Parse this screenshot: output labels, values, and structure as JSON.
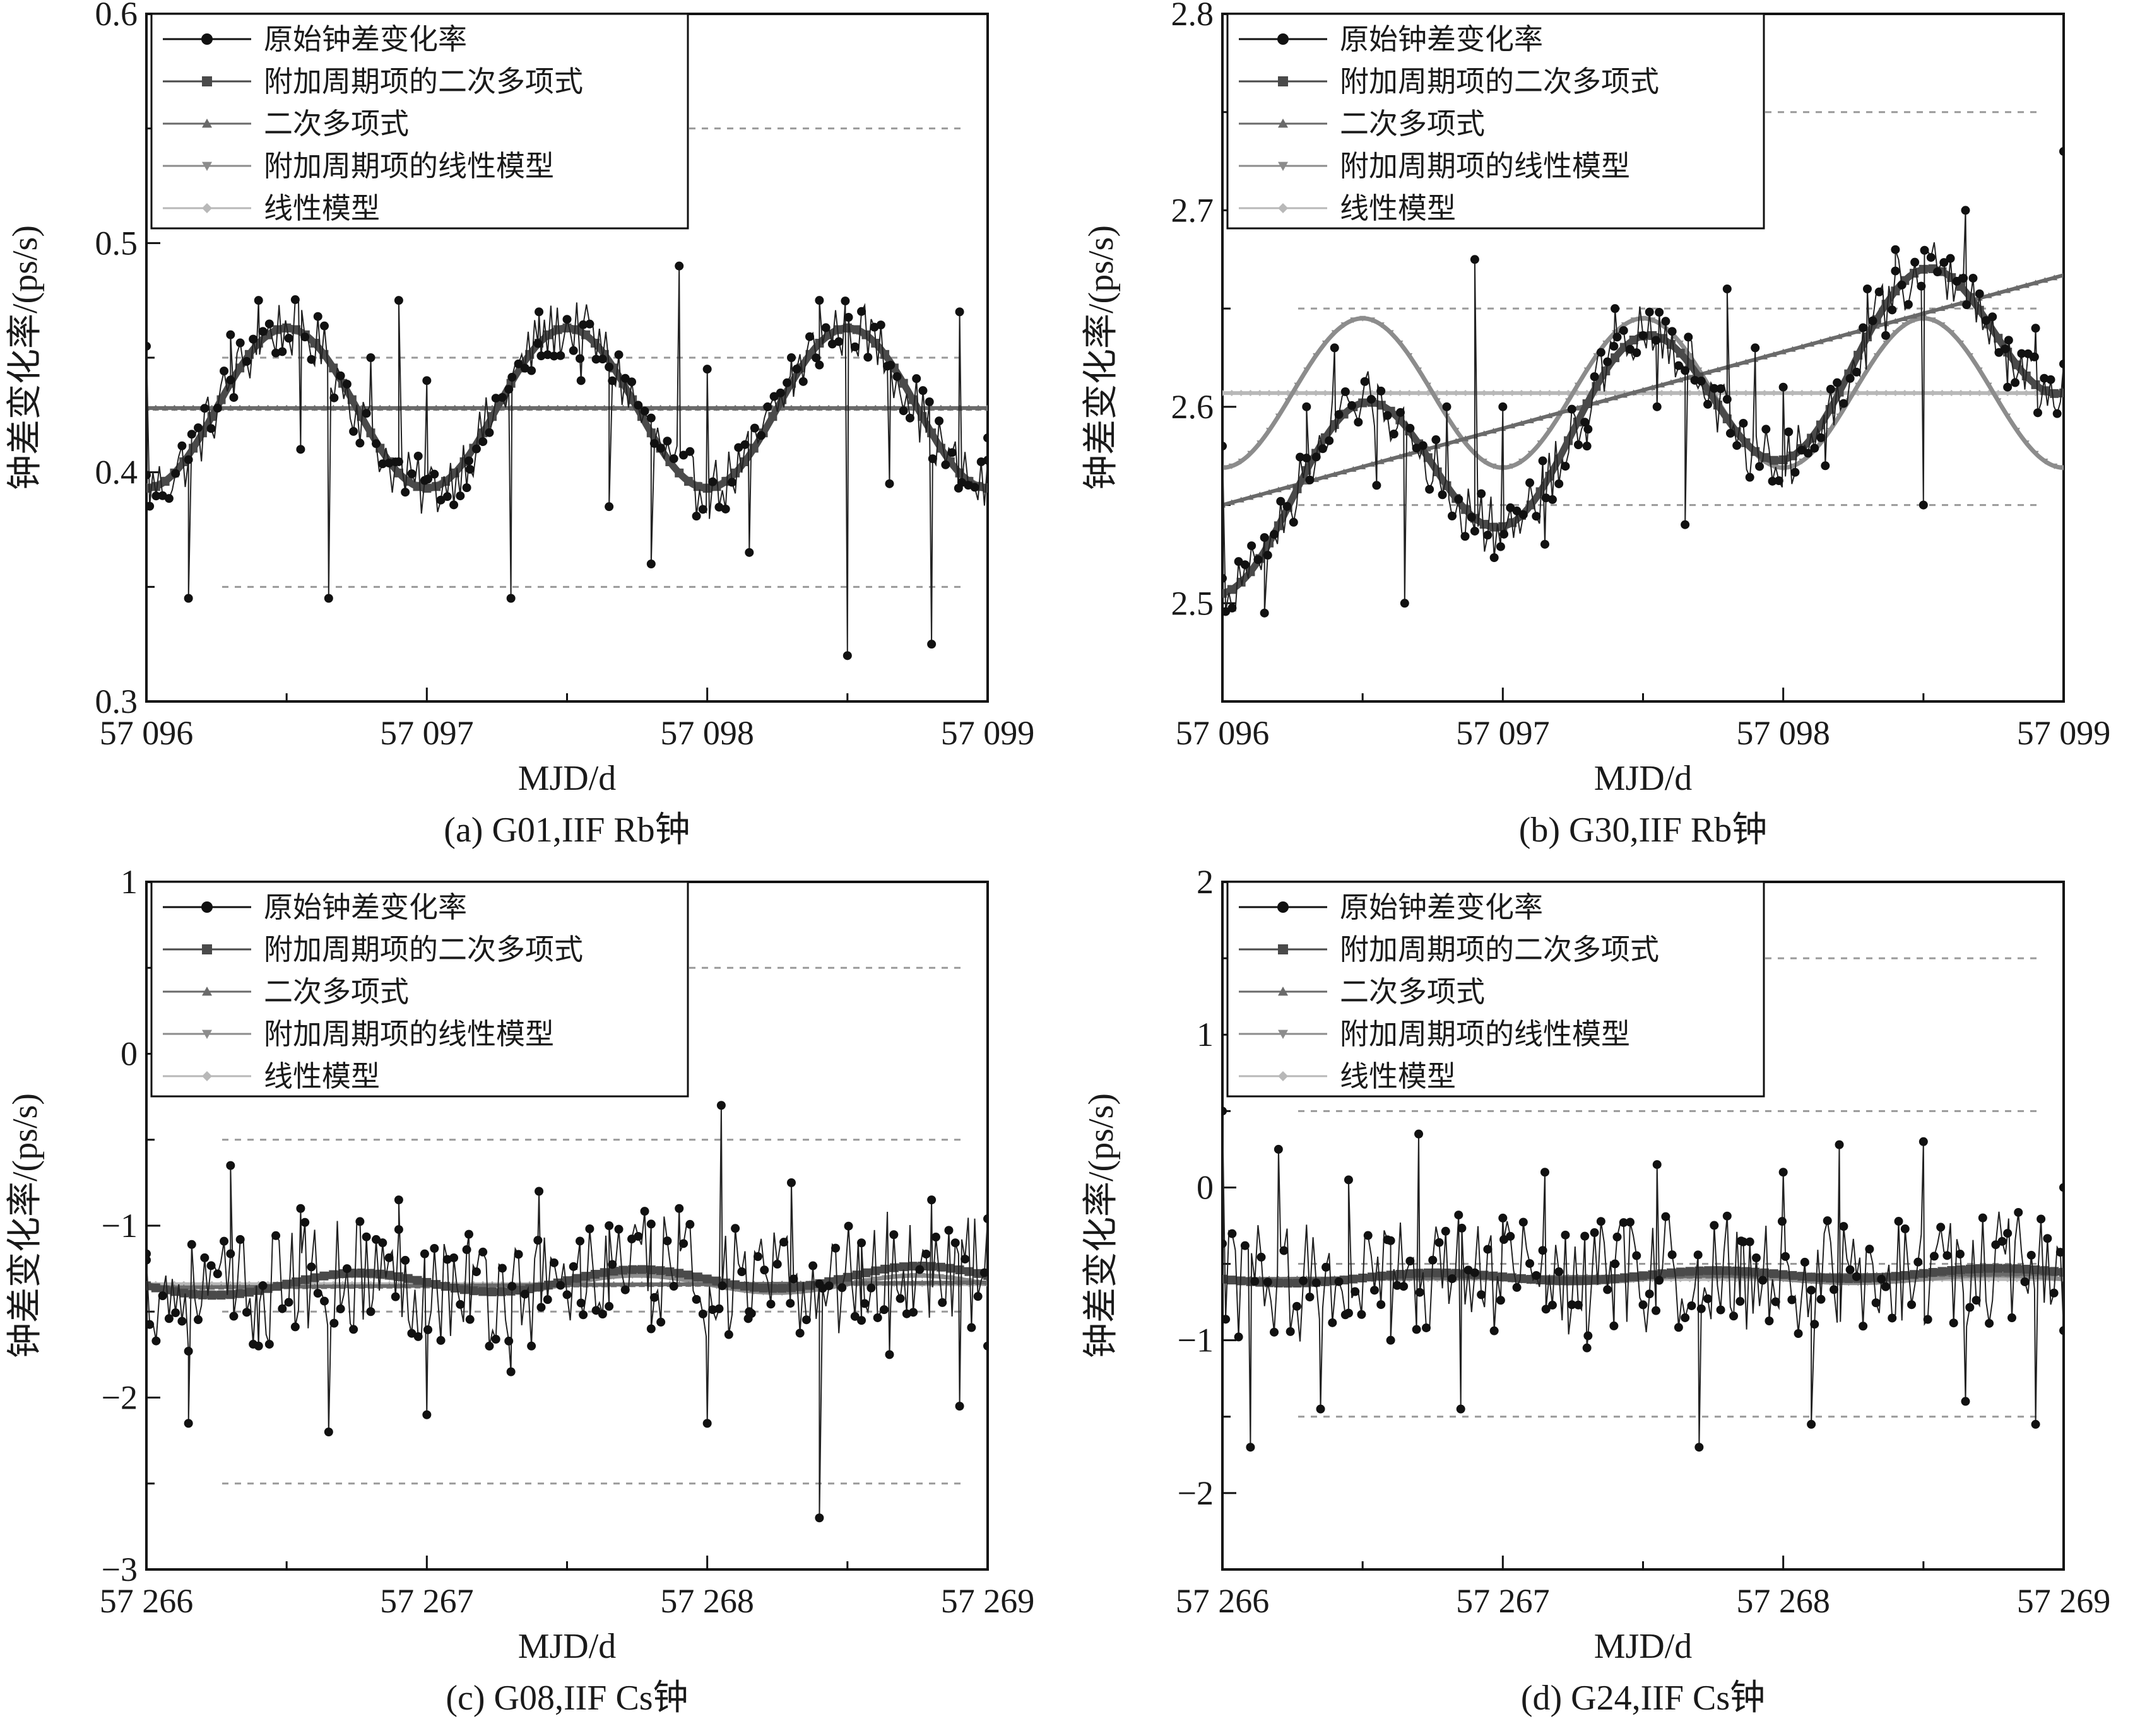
{
  "figure": {
    "series_names": [
      "原始钟差变化率",
      "附加周期项的二次多项式",
      "二次多项式",
      "附加周期项的线性模型",
      "线性模型"
    ],
    "series_colors": [
      "#111111",
      "#4a4a4a",
      "#6a6a6a",
      "#8c8c8c",
      "#b8b8b8"
    ],
    "series_markers": [
      "circle",
      "square",
      "triangle-up",
      "triangle-down",
      "diamond"
    ]
  },
  "chart_data": [
    {
      "type": "line",
      "panel": "a",
      "caption": "(a) G01,IIF Rb钟",
      "xlabel": "MJD/d",
      "ylabel": "钟差变化率/(ps/s)",
      "xlim": [
        57096,
        57099
      ],
      "ylim": [
        0.3,
        0.6
      ],
      "xticks": [
        57096,
        57097,
        57098,
        57099
      ],
      "xtick_labels": [
        "57 096",
        "57 097",
        "57 098",
        "57 099"
      ],
      "yticks": [
        0.3,
        0.4,
        0.5,
        0.6
      ],
      "ytick_labels": [
        "0.3",
        "0.4",
        "0.5",
        "0.6"
      ],
      "grid_y": [
        0.35,
        0.45,
        0.55
      ],
      "legend": "top-left",
      "series": [
        {
          "name": "原始钟差变化率",
          "x": [
            57096.0,
            57096.15,
            57096.3,
            57096.4,
            57096.55,
            57096.65,
            57096.8,
            57096.9,
            57097.0,
            57097.15,
            57097.3,
            57097.4,
            57097.55,
            57097.65,
            57097.8,
            57097.9,
            57098.0,
            57098.15,
            57098.3,
            57098.4,
            57098.5,
            57098.65,
            57098.8,
            57098.9,
            57099.0
          ],
          "values": [
            0.455,
            0.345,
            0.46,
            0.475,
            0.41,
            0.345,
            0.45,
            0.475,
            0.44,
            0.405,
            0.345,
            0.47,
            0.44,
            0.385,
            0.36,
            0.49,
            0.445,
            0.365,
            0.45,
            0.475,
            0.32,
            0.395,
            0.325,
            0.47,
            0.415
          ]
        },
        {
          "name": "附加周期项的二次多项式",
          "amp": 0.035,
          "mean": 0.428,
          "trend": 0.0,
          "freq": 1.0,
          "phase": 0.5
        },
        {
          "name": "二次多项式",
          "amp": 0.0,
          "mean": 0.428,
          "trend": 0.0,
          "freq": 1.0,
          "phase": 0.0
        },
        {
          "name": "附加周期项的线性模型",
          "amp": 0.034,
          "mean": 0.428,
          "trend": 0.0,
          "freq": 1.0,
          "phase": 0.5
        },
        {
          "name": "线性模型",
          "amp": 0.0,
          "mean": 0.428,
          "trend": 0.0,
          "freq": 1.0,
          "phase": 0.0
        }
      ]
    },
    {
      "type": "line",
      "panel": "b",
      "caption": "(b) G30,IIF Rb钟",
      "xlabel": "MJD/d",
      "ylabel": "钟差变化率/(ps/s)",
      "xlim": [
        57096,
        57099
      ],
      "ylim": [
        2.45,
        2.8
      ],
      "xticks": [
        57096,
        57097,
        57098,
        57099
      ],
      "xtick_labels": [
        "57 096",
        "57 097",
        "57 098",
        "57 099"
      ],
      "yticks": [
        2.5,
        2.6,
        2.7,
        2.8
      ],
      "ytick_labels": [
        "2.5",
        "2.6",
        "2.7",
        "2.8"
      ],
      "grid_y": [
        2.55,
        2.65,
        2.75
      ],
      "legend": "top-left",
      "series": [
        {
          "name": "原始钟差变化率",
          "x": [
            57096.0,
            57096.15,
            57096.3,
            57096.4,
            57096.55,
            57096.65,
            57096.8,
            57096.9,
            57097.0,
            57097.15,
            57097.3,
            57097.4,
            57097.55,
            57097.65,
            57097.8,
            57097.9,
            57098.0,
            57098.15,
            57098.3,
            57098.4,
            57098.5,
            57098.65,
            57098.8,
            57098.9,
            57099.0
          ],
          "values": [
            2.58,
            2.495,
            2.6,
            2.63,
            2.56,
            2.5,
            2.6,
            2.675,
            2.6,
            2.53,
            2.58,
            2.65,
            2.6,
            2.54,
            2.66,
            2.63,
            2.61,
            2.57,
            2.66,
            2.68,
            2.55,
            2.7,
            2.61,
            2.64,
            2.73
          ]
        },
        {
          "name": "附加周期项的二次多项式",
          "amp": 0.04,
          "mean": 2.545,
          "trend": 0.034,
          "freq": 1.0,
          "phase": 0.5
        },
        {
          "name": "二次多项式",
          "amp": 0.0,
          "mean": 2.55,
          "trend": 0.039,
          "freq": 1.0,
          "phase": 0.0
        },
        {
          "name": "附加周期项的线性模型",
          "amp": 0.038,
          "mean": 2.607,
          "trend": 0.0,
          "freq": 1.0,
          "phase": 0.5
        },
        {
          "name": "线性模型",
          "amp": 0.0,
          "mean": 2.607,
          "trend": 0.0,
          "freq": 1.0,
          "phase": 0.0
        }
      ]
    },
    {
      "type": "line",
      "panel": "c",
      "caption": "(c) G08,IIF Cs钟",
      "xlabel": "MJD/d",
      "ylabel": "钟差变化率/(ps/s)",
      "xlim": [
        57266,
        57269
      ],
      "ylim": [
        -3,
        1
      ],
      "xticks": [
        57266,
        57267,
        57268,
        57269
      ],
      "xtick_labels": [
        "57 266",
        "57 267",
        "57 268",
        "57 269"
      ],
      "yticks": [
        -3,
        -2,
        -1,
        0,
        1
      ],
      "ytick_labels": [
        "−3",
        "−2",
        "−1",
        "0",
        "1"
      ],
      "grid_y": [
        -2.5,
        -1.5,
        -0.5,
        0.5
      ],
      "legend": "top-left",
      "series": [
        {
          "name": "原始钟差变化率",
          "x": [
            57266.0,
            57266.15,
            57266.3,
            57266.4,
            57266.55,
            57266.65,
            57266.8,
            57266.9,
            57267.0,
            57267.15,
            57267.3,
            57267.4,
            57267.55,
            57267.65,
            57267.8,
            57267.9,
            57268.0,
            57268.05,
            57268.15,
            57268.3,
            57268.4,
            57268.55,
            57268.65,
            57268.8,
            57268.9,
            57269.0
          ],
          "values": [
            -1.2,
            -2.15,
            -0.65,
            -1.7,
            -0.9,
            -2.2,
            -1.5,
            -0.85,
            -2.1,
            -1.05,
            -1.85,
            -0.8,
            -1.45,
            -1.0,
            -1.6,
            -0.9,
            -2.15,
            -0.3,
            -1.5,
            -0.75,
            -2.7,
            -1.1,
            -1.75,
            -0.85,
            -2.05,
            -1.7
          ]
        },
        {
          "name": "附加周期项的二次多项式",
          "amp": 0.06,
          "mean": -1.35,
          "trend": 0.02,
          "freq": 1.0,
          "phase": 0.25
        },
        {
          "name": "二次多项式",
          "amp": 0.0,
          "mean": -1.36,
          "trend": 0.01,
          "freq": 1.0,
          "phase": 0.0
        },
        {
          "name": "附加周期项的线性模型",
          "amp": 0.05,
          "mean": -1.34,
          "trend": 0.0,
          "freq": 1.0,
          "phase": 0.25
        },
        {
          "name": "线性模型",
          "amp": 0.0,
          "mean": -1.34,
          "trend": 0.0,
          "freq": 1.0,
          "phase": 0.0
        }
      ]
    },
    {
      "type": "line",
      "panel": "d",
      "caption": "(d) G24,IIF Cs钟",
      "xlabel": "MJD/d",
      "ylabel": "钟差变化率/(ps/s)",
      "xlim": [
        57266,
        57269
      ],
      "ylim": [
        -2.5,
        2
      ],
      "xticks": [
        57266,
        57267,
        57268,
        57269
      ],
      "xtick_labels": [
        "57 266",
        "57 267",
        "57 268",
        "57 269"
      ],
      "yticks": [
        -2,
        -1,
        0,
        1,
        2
      ],
      "ytick_labels": [
        "−2",
        "−1",
        "0",
        "1",
        "2"
      ],
      "grid_y": [
        -1.5,
        -0.5,
        0.5,
        1.5
      ],
      "legend": "top-left",
      "series": [
        {
          "name": "原始钟差变化率",
          "x": [
            57266.0,
            57266.1,
            57266.2,
            57266.35,
            57266.45,
            57266.6,
            57266.7,
            57266.85,
            57267.0,
            57267.15,
            57267.3,
            57267.4,
            57267.55,
            57267.7,
            57267.85,
            57268.0,
            57268.1,
            57268.2,
            57268.35,
            57268.5,
            57268.65,
            57268.8,
            57268.9,
            57269.0
          ],
          "values": [
            0.5,
            -1.7,
            0.25,
            -1.45,
            0.05,
            -1.0,
            0.35,
            -1.45,
            -0.2,
            0.1,
            -1.05,
            -0.5,
            0.15,
            -1.7,
            -0.35,
            0.1,
            -1.55,
            0.28,
            -0.6,
            0.3,
            -1.4,
            -0.3,
            -1.55,
            0.0
          ]
        },
        {
          "name": "附加周期项的二次多项式",
          "amp": 0.03,
          "mean": -0.6,
          "trend": 0.015,
          "freq": 1.0,
          "phase": 0.25
        },
        {
          "name": "二次多项式",
          "amp": 0.0,
          "mean": -0.6,
          "trend": 0.012,
          "freq": 1.0,
          "phase": 0.0
        },
        {
          "name": "附加周期项的线性模型",
          "amp": 0.025,
          "mean": -0.6,
          "trend": 0.0,
          "freq": 1.0,
          "phase": 0.25
        },
        {
          "name": "线性模型",
          "amp": 0.0,
          "mean": -0.6,
          "trend": 0.0,
          "freq": 1.0,
          "phase": 0.0
        }
      ]
    }
  ]
}
